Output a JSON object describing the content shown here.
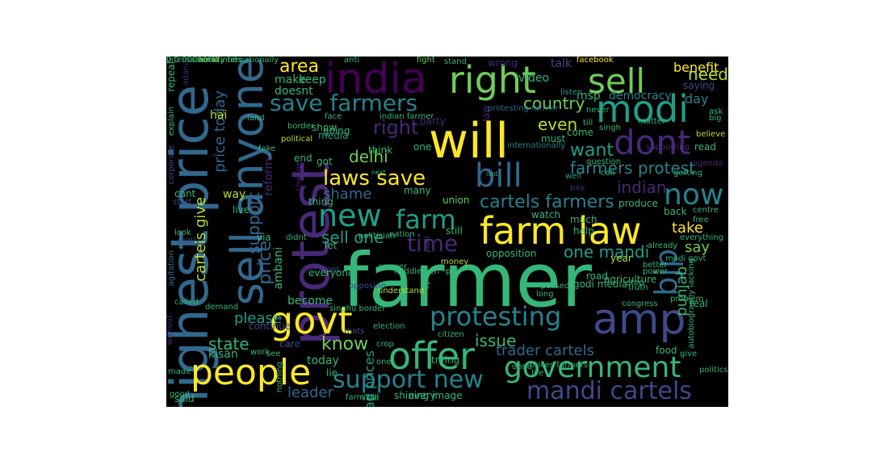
{
  "colors": {
    "background": "#000000",
    "page": "#ffffff",
    "yellow": "#fde725",
    "lime": "#b5de2b",
    "green": "#6ece58",
    "seagreen": "#35b779",
    "teal": "#1f9e89",
    "cyan": "#26828e",
    "blue": "#31688e",
    "navy": "#3e4989",
    "indigo": "#482878",
    "purple": "#440154"
  },
  "words": [
    {
      "text": "farmer",
      "color": "seagreen"
    },
    {
      "text": "will",
      "color": "yellow"
    },
    {
      "text": "india",
      "color": "purple"
    },
    {
      "text": "farm law",
      "color": "yellow"
    },
    {
      "text": "amp",
      "color": "navy"
    },
    {
      "text": "protest",
      "color": "indigo"
    },
    {
      "text": "highest price",
      "color": "blue"
    },
    {
      "text": "sell anyone",
      "color": "blue"
    },
    {
      "text": "right",
      "color": "green"
    },
    {
      "text": "sell",
      "color": "green"
    },
    {
      "text": "govt",
      "color": "yellow"
    },
    {
      "text": "people",
      "color": "yellow"
    },
    {
      "text": "offer",
      "color": "seagreen"
    },
    {
      "text": "government",
      "color": "seagreen"
    },
    {
      "text": "bill",
      "color": "blue"
    },
    {
      "text": "modi",
      "color": "teal"
    },
    {
      "text": "dont",
      "color": "indigo"
    },
    {
      "text": "now",
      "color": "cyan"
    },
    {
      "text": "protesting",
      "color": "cyan"
    },
    {
      "text": "save farmers",
      "color": "cyan"
    },
    {
      "text": "mandi cartels",
      "color": "navy"
    },
    {
      "text": "farm",
      "color": "teal"
    },
    {
      "text": "new",
      "color": "teal"
    },
    {
      "text": "time",
      "color": "indigo"
    },
    {
      "text": "laws save",
      "color": "yellow"
    },
    {
      "text": "support new",
      "color": "cyan"
    },
    {
      "text": "bjp",
      "color": "blue"
    },
    {
      "text": "cartels farmers",
      "color": "cyan"
    },
    {
      "text": "farmers protest",
      "color": "cyan"
    },
    {
      "text": "want",
      "color": "teal"
    },
    {
      "text": "country",
      "color": "green"
    },
    {
      "text": "even",
      "color": "lime"
    },
    {
      "text": "need",
      "color": "lime"
    },
    {
      "text": "area",
      "color": "yellow"
    },
    {
      "text": "right",
      "color": "indigo"
    },
    {
      "text": "delhi",
      "color": "green"
    },
    {
      "text": "take",
      "color": "yellow"
    },
    {
      "text": "say",
      "color": "green"
    },
    {
      "text": "indian",
      "color": "indigo"
    },
    {
      "text": "one mandi",
      "color": "teal"
    },
    {
      "text": "know",
      "color": "green"
    },
    {
      "text": "state",
      "color": "seagreen"
    },
    {
      "text": "issue",
      "color": "seagreen"
    },
    {
      "text": "punjab",
      "color": "seagreen"
    },
    {
      "text": "trader cartels",
      "color": "blue"
    },
    {
      "text": "leader",
      "color": "blue"
    },
    {
      "text": "support",
      "color": "blue"
    },
    {
      "text": "price",
      "color": "blue"
    },
    {
      "text": "price today",
      "color": "blue"
    },
    {
      "text": "cartels give",
      "color": "lime"
    },
    {
      "text": "shame",
      "color": "blue"
    },
    {
      "text": "sell one",
      "color": "teal"
    },
    {
      "text": "please",
      "color": "teal"
    },
    {
      "text": "bad prices",
      "color": "teal"
    },
    {
      "text": "day",
      "color": "cyan"
    },
    {
      "text": "democracy",
      "color": "cyan"
    },
    {
      "text": "msp",
      "color": "seagreen"
    },
    {
      "text": "make",
      "color": "seagreen"
    },
    {
      "text": "doesnt",
      "color": "seagreen"
    },
    {
      "text": "keep",
      "color": "seagreen"
    },
    {
      "text": "benefit",
      "color": "yellow"
    },
    {
      "text": "video",
      "color": "seagreen"
    },
    {
      "text": "talk",
      "color": "navy"
    },
    {
      "text": "facebook",
      "color": "yellow"
    },
    {
      "text": "world",
      "color": "lime"
    },
    {
      "text": "anti",
      "color": "seagreen"
    },
    {
      "text": "fight",
      "color": "green"
    },
    {
      "text": "stand",
      "color": "seagreen"
    },
    {
      "text": "wrong",
      "color": "indigo"
    },
    {
      "text": "repeal",
      "color": "seagreen"
    },
    {
      "text": "adani",
      "color": "indigo"
    },
    {
      "text": "saying",
      "color": "navy"
    },
    {
      "text": "listen",
      "color": "teal"
    },
    {
      "text": "never",
      "color": "seagreen"
    },
    {
      "text": "ask",
      "color": "seagreen"
    },
    {
      "text": "big",
      "color": "seagreen"
    },
    {
      "text": "explain",
      "color": "seagreen"
    },
    {
      "text": "hai",
      "color": "lime"
    },
    {
      "text": "face",
      "color": "seagreen"
    },
    {
      "text": "law",
      "color": "indigo"
    },
    {
      "text": "till",
      "color": "seagreen"
    },
    {
      "text": "matter",
      "color": "seagreen"
    },
    {
      "text": "indian farmer",
      "color": "seagreen"
    },
    {
      "text": "party",
      "color": "indigo"
    },
    {
      "text": "protesting farmer",
      "color": "blue"
    },
    {
      "text": "land",
      "color": "seagreen"
    },
    {
      "text": "border",
      "color": "seagreen"
    },
    {
      "text": "going",
      "color": "seagreen"
    },
    {
      "text": "media",
      "color": "teal"
    },
    {
      "text": "must",
      "color": "seagreen"
    },
    {
      "text": "come",
      "color": "seagreen"
    },
    {
      "text": "singh",
      "color": "seagreen"
    },
    {
      "text": "believe",
      "color": "lime"
    },
    {
      "text": "show",
      "color": "seagreen"
    },
    {
      "text": "political",
      "color": "lime"
    },
    {
      "text": "one",
      "color": "seagreen"
    },
    {
      "text": "read",
      "color": "seagreen"
    },
    {
      "text": "think",
      "color": "seagreen"
    },
    {
      "text": "getting",
      "color": "seagreen"
    },
    {
      "text": "end",
      "color": "seagreen"
    },
    {
      "text": "got",
      "color": "seagreen"
    },
    {
      "text": "fake",
      "color": "seagreen"
    },
    {
      "text": "supporting",
      "color": "indigo"
    },
    {
      "text": "agenda",
      "color": "indigo"
    },
    {
      "text": "corporate",
      "color": "navy"
    },
    {
      "text": "reform",
      "color": "indigo"
    },
    {
      "text": "change",
      "color": "indigo"
    },
    {
      "text": "question",
      "color": "seagreen"
    },
    {
      "text": "call",
      "color": "seagreen"
    },
    {
      "text": "internationally",
      "color": "cyan"
    },
    {
      "text": "well",
      "color": "teal"
    },
    {
      "text": "pay",
      "color": "indigo"
    },
    {
      "text": "union",
      "color": "green"
    },
    {
      "text": "many",
      "color": "seagreen"
    },
    {
      "text": "thing",
      "color": "seagreen"
    },
    {
      "text": "cant",
      "color": "seagreen"
    },
    {
      "text": "way",
      "color": "lime"
    },
    {
      "text": "start",
      "color": "navy"
    },
    {
      "text": "live",
      "color": "seagreen"
    },
    {
      "text": "via",
      "color": "seagreen"
    },
    {
      "text": "let",
      "color": "seagreen"
    },
    {
      "text": "still",
      "color": "seagreen"
    },
    {
      "text": "politician",
      "color": "seagreen"
    },
    {
      "text": "watch",
      "color": "seagreen"
    },
    {
      "text": "much",
      "color": "seagreen"
    },
    {
      "text": "produce",
      "color": "seagreen"
    },
    {
      "text": "centre",
      "color": "seagreen"
    },
    {
      "text": "free",
      "color": "seagreen"
    },
    {
      "text": "back",
      "color": "seagreen"
    },
    {
      "text": "help",
      "color": "seagreen"
    },
    {
      "text": "already",
      "color": "seagreen"
    },
    {
      "text": "everything",
      "color": "seagreen"
    },
    {
      "text": "opposition",
      "color": "seagreen"
    },
    {
      "text": "year",
      "color": "lime"
    },
    {
      "text": "modi govt",
      "color": "seagreen"
    },
    {
      "text": "agitation",
      "color": "blue"
    },
    {
      "text": "look",
      "color": "seagreen"
    },
    {
      "text": "really",
      "color": "navy"
    },
    {
      "text": "didnt",
      "color": "seagreen"
    },
    {
      "text": "ambani",
      "color": "seagreen"
    },
    {
      "text": "wont",
      "color": "navy"
    },
    {
      "text": "answer",
      "color": "seagreen"
    },
    {
      "text": "middlemen",
      "color": "seagreen"
    },
    {
      "text": "nation",
      "color": "seagreen"
    },
    {
      "text": "point",
      "color": "navy"
    },
    {
      "text": "autobiography lacking",
      "color": "seagreen"
    },
    {
      "text": "agriculture",
      "color": "seagreen"
    },
    {
      "text": "stop",
      "color": "seagreen"
    },
    {
      "text": "truth",
      "color": "seagreen"
    },
    {
      "text": "better",
      "color": "seagreen"
    },
    {
      "text": "power",
      "color": "seagreen"
    },
    {
      "text": "road",
      "color": "seagreen"
    },
    {
      "text": "passed",
      "color": "seagreen"
    },
    {
      "text": "long",
      "color": "seagreen"
    },
    {
      "text": "godi media",
      "color": "seagreen"
    },
    {
      "text": "congress",
      "color": "seagreen"
    },
    {
      "text": "everyone",
      "color": "seagreen"
    },
    {
      "text": "money",
      "color": "lime"
    },
    {
      "text": "ppl",
      "color": "seagreen"
    },
    {
      "text": "open",
      "color": "seagreen"
    },
    {
      "text": "become",
      "color": "seagreen"
    },
    {
      "text": "understand",
      "color": "lime"
    },
    {
      "text": "singhu border",
      "color": "seagreen"
    },
    {
      "text": "called",
      "color": "seagreen"
    },
    {
      "text": "demand",
      "color": "seagreen"
    },
    {
      "text": "continue",
      "color": "navy"
    },
    {
      "text": "without",
      "color": "indigo"
    },
    {
      "text": "thats",
      "color": "navy"
    },
    {
      "text": "opposing",
      "color": "navy"
    },
    {
      "text": "election",
      "color": "seagreen"
    },
    {
      "text": "citizen",
      "color": "seagreen"
    },
    {
      "text": "real",
      "color": "seagreen"
    },
    {
      "text": "problem",
      "color": "seagreen"
    },
    {
      "text": "care",
      "color": "navy"
    },
    {
      "text": "see",
      "color": "seagreen"
    },
    {
      "text": "work",
      "color": "seagreen"
    },
    {
      "text": "crop",
      "color": "seagreen"
    },
    {
      "text": "trying",
      "color": "seagreen"
    },
    {
      "text": "food",
      "color": "seagreen"
    },
    {
      "text": "give",
      "color": "seagreen"
    },
    {
      "text": "kisan",
      "color": "seagreen"
    },
    {
      "text": "today",
      "color": "seagreen"
    },
    {
      "text": "nothing",
      "color": "seagreen"
    },
    {
      "text": "one",
      "color": "seagreen"
    },
    {
      "text": "politics",
      "color": "seagreen"
    },
    {
      "text": "made",
      "color": "seagreen"
    },
    {
      "text": "lie",
      "color": "seagreen"
    },
    {
      "text": "good",
      "color": "seagreen"
    },
    {
      "text": "said",
      "color": "seagreen"
    },
    {
      "text": "farm bill",
      "color": "seagreen"
    },
    {
      "text": "insult",
      "color": "seagreen"
    },
    {
      "text": "shining image",
      "color": "seagreen"
    },
    {
      "text": "every",
      "color": "seagreen"
    },
    {
      "text": "prices farmers",
      "color": "seagreen"
    },
    {
      "text": "life",
      "color": "seagreen"
    },
    {
      "text": "done",
      "color": "seagreen"
    },
    {
      "text": "next",
      "color": "seagreen"
    },
    {
      "text": "isnt",
      "color": "seagreen"
    },
    {
      "text": "0 0 0000000 internationally",
      "color": "seagreen"
    },
    {
      "text": "internationally hits",
      "color": "seagreen"
    }
  ]
}
